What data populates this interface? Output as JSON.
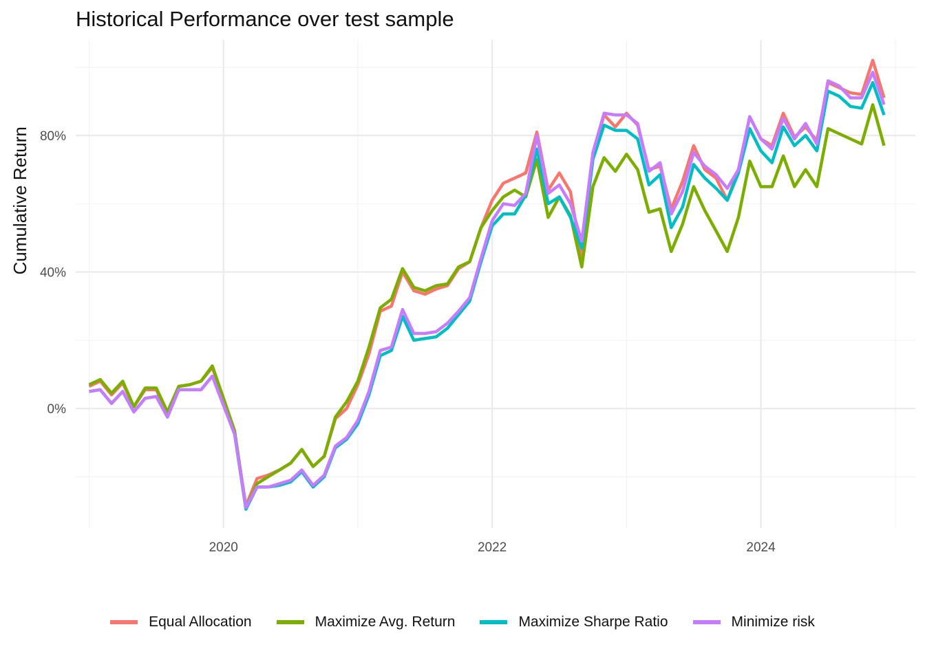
{
  "chart_data": {
    "type": "line",
    "title": "Historical Performance over test sample",
    "xlabel": "",
    "ylabel": "Cumulative Return",
    "x_ticks": [
      "2020",
      "2022",
      "2024"
    ],
    "y_ticks": [
      "0%",
      "40%",
      "80%"
    ],
    "xlim": [
      2018.9,
      2025.15
    ],
    "ylim": [
      -35,
      108
    ],
    "grid": true,
    "legend_position": "bottom",
    "x": [
      2019.0,
      2019.083,
      2019.167,
      2019.25,
      2019.333,
      2019.417,
      2019.5,
      2019.583,
      2019.667,
      2019.75,
      2019.833,
      2019.917,
      2020.0,
      2020.083,
      2020.167,
      2020.25,
      2020.333,
      2020.417,
      2020.5,
      2020.583,
      2020.667,
      2020.75,
      2020.833,
      2020.917,
      2021.0,
      2021.083,
      2021.167,
      2021.25,
      2021.333,
      2021.417,
      2021.5,
      2021.583,
      2021.667,
      2021.75,
      2021.833,
      2021.917,
      2022.0,
      2022.083,
      2022.167,
      2022.25,
      2022.333,
      2022.417,
      2022.5,
      2022.583,
      2022.667,
      2022.75,
      2022.833,
      2022.917,
      2023.0,
      2023.083,
      2023.167,
      2023.25,
      2023.333,
      2023.417,
      2023.5,
      2023.583,
      2023.667,
      2023.75,
      2023.833,
      2023.917,
      2024.0,
      2024.083,
      2024.167,
      2024.25,
      2024.333,
      2024.417,
      2024.5,
      2024.583,
      2024.667,
      2024.75,
      2024.833,
      2024.917
    ],
    "series": [
      {
        "name": "Equal Allocation",
        "color": "#F8766D",
        "values": [
          6.5,
          8,
          4,
          7.5,
          0.5,
          5.5,
          5.5,
          -1.5,
          6.5,
          7,
          8,
          12,
          3,
          -7,
          -28.5,
          -20.5,
          -19.5,
          -18,
          -16,
          -12,
          -17,
          -14,
          -3,
          0,
          7,
          16,
          28.5,
          30,
          40,
          34.5,
          33.5,
          35,
          36,
          41,
          43,
          53,
          61,
          66,
          67.5,
          69,
          81,
          64,
          69,
          63.5,
          44,
          74,
          86,
          82.5,
          86.5,
          83,
          70,
          71,
          58.5,
          66.5,
          77,
          70,
          67.5,
          61,
          70,
          85.5,
          79,
          77,
          86.5,
          79.5,
          82.5,
          78.5,
          95.5,
          94,
          92.5,
          92,
          102,
          91
        ]
      },
      {
        "name": "Maximize Avg. Return",
        "color": "#7CAE00",
        "values": [
          7,
          8.5,
          4.5,
          8,
          0.5,
          6,
          6,
          -1,
          6.5,
          7,
          8,
          12.5,
          3,
          -6.5,
          -29,
          -22,
          -20,
          -18,
          -16,
          -12,
          -17,
          -14,
          -2.5,
          2,
          8,
          18,
          29.5,
          32,
          41,
          35.5,
          34.5,
          36,
          36.5,
          41.5,
          43,
          53,
          58,
          62,
          64,
          62,
          73,
          56,
          62,
          56.5,
          41.5,
          65,
          73.5,
          69.5,
          74.5,
          70,
          57.5,
          58.5,
          46,
          54,
          65,
          58,
          52,
          46,
          56,
          72.5,
          65,
          65,
          74,
          65,
          70,
          65,
          82,
          80.5,
          79,
          77.5,
          89,
          77
        ]
      },
      {
        "name": "Maximize Sharpe Ratio",
        "color": "#00BFC4",
        "values": [
          5,
          5.5,
          1.5,
          5,
          -1,
          3,
          3.5,
          -2.5,
          5.5,
          5.5,
          5.5,
          9.5,
          1,
          -7.5,
          -29.5,
          -23,
          -23,
          -22.5,
          -21.5,
          -18.5,
          -23,
          -20,
          -11.5,
          -9,
          -4.5,
          4,
          15.5,
          17,
          27,
          20,
          20.5,
          21,
          23.5,
          27.5,
          31.5,
          43,
          53.5,
          57,
          57,
          62.5,
          76,
          60,
          62,
          56,
          47,
          73,
          83,
          81.5,
          81.5,
          79,
          65.5,
          68.5,
          53,
          59,
          71.5,
          67.5,
          64.5,
          61,
          69,
          82,
          75.5,
          72,
          82.5,
          77,
          80,
          75.5,
          93,
          91.5,
          88.5,
          88,
          95.5,
          86
        ]
      },
      {
        "name": "Minimize risk",
        "color": "#C77CFF",
        "values": [
          5,
          5.5,
          1.5,
          5,
          -1,
          3,
          3.5,
          -2.5,
          5.5,
          5.5,
          5.5,
          9.5,
          1,
          -7.5,
          -29,
          -23,
          -23,
          -22,
          -21,
          -18,
          -22.5,
          -19.5,
          -11,
          -8.5,
          -3.5,
          5,
          17,
          18,
          29,
          22,
          22,
          22.5,
          25,
          28.5,
          32.5,
          44,
          55,
          60,
          59.5,
          63,
          80,
          63,
          65.5,
          60,
          49,
          75,
          86.5,
          86,
          86,
          83.5,
          69.5,
          72,
          57,
          63.5,
          75,
          71,
          68.5,
          64.5,
          70,
          85.5,
          79,
          76,
          85,
          79,
          83.5,
          77.5,
          96,
          94.5,
          91,
          91,
          98.5,
          89
        ]
      }
    ]
  }
}
